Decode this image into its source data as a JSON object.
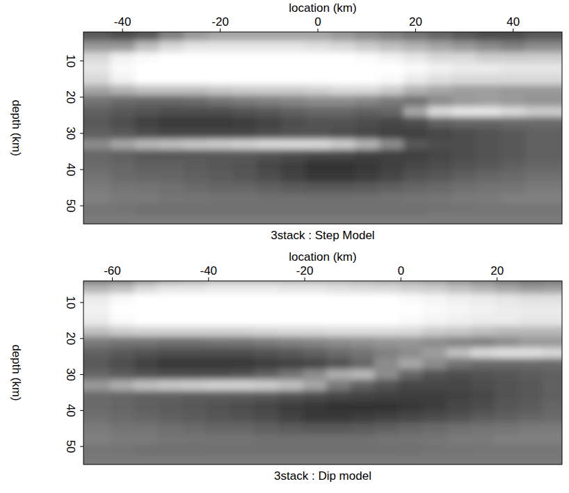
{
  "chart_data": [
    {
      "type": "heatmap",
      "title": "3stack : Step Model",
      "x_label": "location (km)",
      "y_label": "depth (km)",
      "xlim": [
        -48,
        50
      ],
      "ylim": [
        2,
        55
      ],
      "zlim": [
        0,
        100
      ],
      "xticks": [
        -40,
        -20,
        0,
        20,
        40
      ],
      "yticks": [
        10,
        20,
        30,
        40,
        50
      ],
      "x": [
        -45,
        -40,
        -35,
        -30,
        -25,
        -20,
        -15,
        -10,
        -5,
        0,
        5,
        10,
        15,
        20,
        25,
        30,
        35,
        40,
        45
      ],
      "y": [
        3,
        6,
        9,
        12,
        15,
        18,
        21,
        24,
        27,
        30,
        33,
        36,
        39,
        42,
        45,
        48,
        51,
        54
      ],
      "z": [
        [
          35,
          30,
          35,
          50,
          60,
          65,
          65,
          65,
          65,
          65,
          60,
          55,
          50,
          45,
          40,
          35,
          30,
          30,
          35
        ],
        [
          60,
          60,
          75,
          85,
          90,
          90,
          90,
          90,
          90,
          88,
          85,
          80,
          75,
          70,
          65,
          60,
          55,
          50,
          55
        ],
        [
          85,
          95,
          98,
          100,
          100,
          100,
          100,
          100,
          100,
          100,
          100,
          98,
          95,
          90,
          85,
          85,
          80,
          80,
          80
        ],
        [
          90,
          98,
          100,
          100,
          100,
          100,
          100,
          100,
          100,
          100,
          100,
          100,
          100,
          98,
          95,
          92,
          92,
          90,
          90
        ],
        [
          85,
          95,
          100,
          100,
          100,
          100,
          100,
          100,
          100,
          100,
          100,
          100,
          98,
          92,
          88,
          85,
          85,
          85,
          85
        ],
        [
          65,
          70,
          75,
          75,
          75,
          78,
          80,
          80,
          80,
          82,
          85,
          85,
          80,
          70,
          65,
          62,
          62,
          60,
          60
        ],
        [
          45,
          42,
          40,
          40,
          42,
          45,
          48,
          50,
          52,
          55,
          55,
          52,
          48,
          45,
          55,
          60,
          62,
          60,
          58
        ],
        [
          38,
          35,
          32,
          30,
          30,
          30,
          32,
          35,
          38,
          40,
          40,
          38,
          40,
          65,
          85,
          90,
          90,
          85,
          80
        ],
        [
          35,
          30,
          25,
          22,
          22,
          22,
          24,
          26,
          30,
          32,
          32,
          30,
          28,
          30,
          38,
          40,
          40,
          42,
          42
        ],
        [
          38,
          35,
          30,
          28,
          28,
          28,
          28,
          30,
          32,
          32,
          30,
          28,
          25,
          25,
          28,
          30,
          32,
          35,
          38
        ],
        [
          55,
          65,
          72,
          75,
          78,
          80,
          82,
          85,
          85,
          85,
          80,
          70,
          55,
          35,
          30,
          30,
          32,
          35,
          38
        ],
        [
          40,
          38,
          35,
          35,
          35,
          35,
          35,
          32,
          30,
          28,
          28,
          25,
          25,
          25,
          28,
          30,
          32,
          35,
          38
        ],
        [
          42,
          40,
          38,
          38,
          36,
          35,
          32,
          28,
          24,
          20,
          20,
          22,
          25,
          28,
          30,
          32,
          35,
          38,
          40
        ],
        [
          45,
          42,
          40,
          40,
          38,
          36,
          34,
          30,
          26,
          22,
          22,
          24,
          28,
          32,
          35,
          38,
          40,
          42,
          44
        ],
        [
          48,
          46,
          45,
          44,
          42,
          40,
          40,
          38,
          36,
          35,
          35,
          36,
          38,
          40,
          42,
          44,
          45,
          46,
          48
        ],
        [
          50,
          48,
          48,
          46,
          46,
          45,
          45,
          44,
          44,
          44,
          44,
          44,
          45,
          46,
          46,
          48,
          48,
          50,
          50
        ],
        [
          46,
          45,
          44,
          44,
          44,
          44,
          44,
          44,
          44,
          44,
          44,
          44,
          44,
          44,
          45,
          45,
          46,
          46,
          46
        ],
        [
          48,
          48,
          48,
          48,
          48,
          48,
          48,
          48,
          48,
          48,
          48,
          48,
          48,
          48,
          48,
          48,
          48,
          48,
          48
        ]
      ]
    },
    {
      "type": "heatmap",
      "title": "3stack : Dip model",
      "x_label": "location (km)",
      "y_label": "depth (km)",
      "xlim": [
        -66,
        33.5
      ],
      "ylim": [
        4,
        55
      ],
      "zlim": [
        0,
        100
      ],
      "xticks": [
        -60,
        -40,
        -20,
        0,
        20
      ],
      "yticks": [
        10,
        20,
        30,
        40,
        50
      ],
      "x": [
        -63,
        -58,
        -53,
        -48,
        -43,
        -38,
        -33,
        -28,
        -23,
        -18,
        -13,
        -8,
        -3,
        2,
        7,
        12,
        17,
        22,
        27,
        32
      ],
      "y": [
        3,
        6,
        9,
        12,
        15,
        18,
        21,
        24,
        27,
        30,
        33,
        36,
        39,
        42,
        45,
        48,
        51,
        54
      ],
      "z": [
        [
          40,
          40,
          45,
          55,
          60,
          65,
          65,
          65,
          65,
          65,
          65,
          62,
          60,
          58,
          55,
          50,
          45,
          40,
          38,
          40
        ],
        [
          70,
          75,
          85,
          90,
          90,
          92,
          92,
          92,
          90,
          90,
          88,
          86,
          85,
          82,
          80,
          75,
          70,
          65,
          60,
          62
        ],
        [
          92,
          98,
          100,
          100,
          100,
          100,
          100,
          100,
          100,
          100,
          100,
          100,
          100,
          98,
          96,
          94,
          92,
          90,
          88,
          88
        ],
        [
          95,
          100,
          100,
          100,
          100,
          100,
          100,
          100,
          100,
          100,
          100,
          100,
          100,
          100,
          98,
          96,
          95,
          93,
          92,
          92
        ],
        [
          92,
          98,
          100,
          100,
          100,
          100,
          100,
          100,
          100,
          100,
          100,
          100,
          100,
          98,
          96,
          94,
          92,
          92,
          90,
          90
        ],
        [
          75,
          80,
          82,
          82,
          82,
          82,
          82,
          84,
          85,
          85,
          86,
          86,
          86,
          85,
          80,
          78,
          75,
          72,
          72,
          72
        ],
        [
          48,
          46,
          45,
          44,
          44,
          45,
          46,
          48,
          50,
          52,
          55,
          56,
          58,
          58,
          55,
          52,
          50,
          55,
          60,
          60
        ],
        [
          38,
          35,
          32,
          30,
          30,
          30,
          30,
          32,
          35,
          38,
          42,
          45,
          50,
          55,
          62,
          75,
          85,
          88,
          88,
          85
        ],
        [
          35,
          30,
          25,
          22,
          22,
          22,
          22,
          24,
          26,
          28,
          32,
          40,
          55,
          65,
          55,
          45,
          42,
          42,
          42,
          42
        ],
        [
          40,
          36,
          32,
          30,
          30,
          30,
          32,
          38,
          45,
          55,
          68,
          72,
          55,
          40,
          32,
          30,
          32,
          34,
          36,
          38
        ],
        [
          60,
          68,
          75,
          78,
          80,
          82,
          82,
          80,
          75,
          65,
          48,
          38,
          32,
          28,
          28,
          28,
          30,
          32,
          35,
          38
        ],
        [
          42,
          40,
          38,
          38,
          36,
          36,
          36,
          35,
          32,
          30,
          28,
          26,
          25,
          24,
          24,
          26,
          28,
          32,
          35,
          38
        ],
        [
          42,
          40,
          38,
          36,
          35,
          32,
          30,
          28,
          24,
          22,
          20,
          20,
          20,
          22,
          24,
          28,
          30,
          34,
          36,
          40
        ],
        [
          44,
          42,
          40,
          38,
          36,
          34,
          32,
          30,
          26,
          22,
          22,
          24,
          26,
          28,
          30,
          32,
          36,
          38,
          40,
          42
        ],
        [
          48,
          46,
          45,
          44,
          42,
          40,
          40,
          38,
          36,
          35,
          35,
          36,
          38,
          40,
          42,
          44,
          45,
          46,
          48,
          48
        ],
        [
          50,
          48,
          48,
          46,
          46,
          45,
          45,
          44,
          44,
          44,
          44,
          44,
          45,
          46,
          46,
          48,
          48,
          50,
          50,
          50
        ],
        [
          46,
          45,
          44,
          44,
          44,
          44,
          44,
          44,
          44,
          44,
          44,
          44,
          44,
          44,
          45,
          45,
          46,
          46,
          46,
          46
        ],
        [
          48,
          48,
          48,
          48,
          48,
          48,
          48,
          48,
          48,
          48,
          48,
          48,
          48,
          48,
          48,
          48,
          48,
          48,
          48,
          48
        ]
      ]
    }
  ]
}
